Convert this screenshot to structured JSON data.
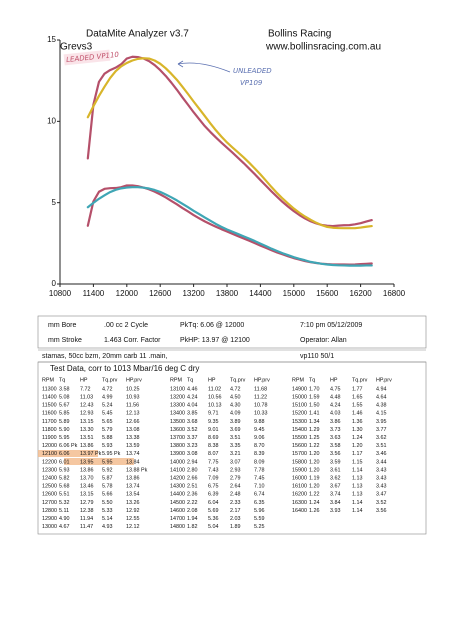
{
  "chart_data": {
    "type": "line",
    "title": "DataMite Analyzer v3.7",
    "subtitle": "Grevs3",
    "header_right": [
      "Bollins Racing",
      "www.bollinsracing.com.au"
    ],
    "annotations": [
      "LEADED VP110",
      "UNLEADED",
      "VP109"
    ],
    "xlim": [
      10800,
      16800
    ],
    "xticks": [
      10800,
      11400,
      12000,
      12600,
      13200,
      13800,
      14400,
      15000,
      15600,
      16200,
      16800
    ],
    "ylim": [
      0,
      15
    ],
    "yticks": [
      0,
      5,
      10,
      15
    ],
    "grid": false,
    "x": [
      11300,
      11400,
      11500,
      11600,
      11700,
      11800,
      11900,
      12000,
      12100,
      12200,
      12300,
      12400,
      12500,
      12600,
      12700,
      12800,
      12900,
      13000,
      13100,
      13200,
      13300,
      13400,
      13500,
      13600,
      13700,
      13800,
      13900,
      14000,
      14100,
      14200,
      14300,
      14400,
      14500,
      14600,
      14700,
      14800,
      14900,
      15000,
      15100,
      15200,
      15300,
      15400,
      15500,
      15600,
      15700,
      15800,
      15900,
      16000,
      16100,
      16200,
      16300,
      16400
    ],
    "series": [
      {
        "color": "#b5506a",
        "values": [
          7.72,
          11.03,
          12.43,
          12.93,
          13.15,
          13.3,
          13.51,
          13.86,
          13.97,
          13.95,
          13.86,
          13.7,
          13.46,
          13.15,
          12.79,
          12.38,
          11.94,
          11.47,
          11.02,
          10.56,
          10.13,
          9.71,
          9.35,
          9.01,
          8.69,
          8.38,
          8.07,
          7.75,
          7.43,
          7.09,
          6.75,
          6.39,
          6.04,
          5.69,
          5.36,
          5.04,
          4.75,
          4.48,
          4.24,
          4.03,
          3.86,
          3.73,
          3.63,
          3.58,
          3.56,
          3.59,
          3.61,
          3.62,
          3.67,
          3.74,
          3.84,
          3.93
        ]
      },
      {
        "color": "#d8b52a",
        "values": [
          10.25,
          10.93,
          11.56,
          12.13,
          12.66,
          13.08,
          13.38,
          13.59,
          13.74,
          13.84,
          13.88,
          13.86,
          13.74,
          13.54,
          13.26,
          12.92,
          12.55,
          12.12,
          11.68,
          11.22,
          10.78,
          10.33,
          9.88,
          9.45,
          9.06,
          8.7,
          8.39,
          8.09,
          7.78,
          7.45,
          7.1,
          6.74,
          6.35,
          5.96,
          5.59,
          5.25,
          4.94,
          4.64,
          4.38,
          4.15,
          3.95,
          3.77,
          3.62,
          3.51,
          3.46,
          3.44,
          3.43,
          3.43,
          3.43,
          3.47,
          3.52,
          3.56
        ]
      },
      {
        "color": "#b5506a",
        "values": [
          3.58,
          5.08,
          5.67,
          5.85,
          5.89,
          5.9,
          5.95,
          6.06,
          6.06,
          6.01,
          5.93,
          5.82,
          5.68,
          5.51,
          5.32,
          5.11,
          4.9,
          4.67,
          4.46,
          4.24,
          4.04,
          3.85,
          3.68,
          3.52,
          3.37,
          3.23,
          3.08,
          2.94,
          2.8,
          2.66,
          2.51,
          2.36,
          2.22,
          2.08,
          1.94,
          1.82,
          1.7,
          1.59,
          1.5,
          1.41,
          1.34,
          1.29,
          1.25,
          1.22,
          1.2,
          1.2,
          1.2,
          1.19,
          1.2,
          1.22,
          1.24,
          1.26
        ]
      },
      {
        "color": "#3fa6b5",
        "values": [
          4.72,
          4.99,
          5.24,
          5.45,
          5.65,
          5.79,
          5.88,
          5.93,
          5.95,
          5.95,
          5.92,
          5.87,
          5.78,
          5.66,
          5.5,
          5.33,
          5.14,
          4.93,
          4.72,
          4.5,
          4.3,
          4.09,
          3.89,
          3.69,
          3.51,
          3.35,
          3.21,
          3.07,
          2.93,
          2.79,
          2.64,
          2.48,
          2.33,
          2.17,
          2.03,
          1.89,
          1.77,
          1.65,
          1.55,
          1.46,
          1.36,
          1.3,
          1.24,
          1.2,
          1.17,
          1.15,
          1.14,
          1.13,
          1.13,
          1.13,
          1.14,
          1.14
        ]
      }
    ]
  },
  "info": {
    "rows": [
      [
        "mm Bore",
        ".00 cc 2 Cycle",
        "PkTq: 6.06 @ 12000",
        "7:10 pm 05/12/2009"
      ],
      [
        "mm Stroke",
        "1.463 Corr. Factor",
        "PkHP: 13.97 @ 12100",
        "Operator: Allan"
      ]
    ],
    "notes": [
      "stamas, 50cc bzm, 20mm carb 11 .main,",
      "vp110 50/1"
    ]
  },
  "table": {
    "title": "Test Data, corr to 1013 Mbar/16 deg C dry",
    "groups": [
      {
        "header": [
          "RPM",
          "Tq",
          "HP",
          "Tq.prv",
          "HP.prv"
        ],
        "rows": [
          [
            "11300",
            "3.58",
            "7.72",
            "4.72",
            "10.25"
          ],
          [
            "11400",
            "5.08",
            "11.03",
            "4.99",
            "10.93"
          ],
          [
            "11500",
            "5.67",
            "12.43",
            "5.24",
            "11.56"
          ],
          [
            "11600",
            "5.85",
            "12.93",
            "5.45",
            "12.13"
          ],
          [
            "11700",
            "5.89",
            "13.15",
            "5.65",
            "12.66"
          ],
          [
            "11800",
            "5.90",
            "13.30",
            "5.79",
            "13.08"
          ],
          [
            "11900",
            "5.95",
            "13.51",
            "5.88",
            "13.38"
          ],
          [
            "12000",
            "6.06 Pk",
            "13.86",
            "5.93",
            "13.59"
          ],
          [
            "12100",
            "6.06",
            "13.97 Pk",
            "5.95 Pk",
            "13.74"
          ],
          [
            "12200",
            "6.01",
            "13.95",
            "5.95",
            "13.84"
          ],
          [
            "12300",
            "5.93",
            "13.86",
            "5.92",
            "13.88 Pk"
          ],
          [
            "12400",
            "5.82",
            "13.70",
            "5.87",
            "13.86"
          ],
          [
            "12500",
            "5.68",
            "13.46",
            "5.78",
            "13.74"
          ],
          [
            "12600",
            "5.51",
            "13.15",
            "5.66",
            "13.54"
          ],
          [
            "12700",
            "5.32",
            "12.79",
            "5.50",
            "13.26"
          ],
          [
            "12800",
            "5.11",
            "12.38",
            "5.33",
            "12.92"
          ],
          [
            "12900",
            "4.90",
            "11.94",
            "5.14",
            "12.55"
          ],
          [
            "13000",
            "4.67",
            "11.47",
            "4.93",
            "12.12"
          ]
        ]
      },
      {
        "header": [
          "RPM",
          "Tq",
          "HP",
          "Tq.prv",
          "HP.prv"
        ],
        "rows": [
          [
            "13100",
            "4.46",
            "11.02",
            "4.72",
            "11.68"
          ],
          [
            "13200",
            "4.24",
            "10.56",
            "4.50",
            "11.22"
          ],
          [
            "13300",
            "4.04",
            "10.13",
            "4.30",
            "10.78"
          ],
          [
            "13400",
            "3.85",
            "9.71",
            "4.09",
            "10.33"
          ],
          [
            "13500",
            "3.68",
            "9.35",
            "3.89",
            "9.88"
          ],
          [
            "13600",
            "3.52",
            "9.01",
            "3.69",
            "9.45"
          ],
          [
            "13700",
            "3.37",
            "8.69",
            "3.51",
            "9.06"
          ],
          [
            "13800",
            "3.23",
            "8.38",
            "3.35",
            "8.70"
          ],
          [
            "13900",
            "3.08",
            "8.07",
            "3.21",
            "8.39"
          ],
          [
            "14000",
            "2.94",
            "7.75",
            "3.07",
            "8.09"
          ],
          [
            "14100",
            "2.80",
            "7.43",
            "2.93",
            "7.78"
          ],
          [
            "14200",
            "2.66",
            "7.09",
            "2.79",
            "7.45"
          ],
          [
            "14300",
            "2.51",
            "6.75",
            "2.64",
            "7.10"
          ],
          [
            "14400",
            "2.36",
            "6.39",
            "2.48",
            "6.74"
          ],
          [
            "14500",
            "2.22",
            "6.04",
            "2.33",
            "6.35"
          ],
          [
            "14600",
            "2.08",
            "5.69",
            "2.17",
            "5.96"
          ],
          [
            "14700",
            "1.94",
            "5.36",
            "2.03",
            "5.59"
          ],
          [
            "14800",
            "1.82",
            "5.04",
            "1.89",
            "5.25"
          ]
        ]
      },
      {
        "header": [
          "RPM",
          "Tq",
          "HP",
          "Tq.prv",
          "HP.prv"
        ],
        "rows": [
          [
            "14900",
            "1.70",
            "4.75",
            "1.77",
            "4.94"
          ],
          [
            "15000",
            "1.59",
            "4.48",
            "1.65",
            "4.64"
          ],
          [
            "15100",
            "1.50",
            "4.24",
            "1.55",
            "4.38"
          ],
          [
            "15200",
            "1.41",
            "4.03",
            "1.46",
            "4.15"
          ],
          [
            "15300",
            "1.34",
            "3.86",
            "1.36",
            "3.95"
          ],
          [
            "15400",
            "1.29",
            "3.73",
            "1.30",
            "3.77"
          ],
          [
            "15500",
            "1.25",
            "3.63",
            "1.24",
            "3.62"
          ],
          [
            "15600",
            "1.22",
            "3.58",
            "1.20",
            "3.51"
          ],
          [
            "15700",
            "1.20",
            "3.56",
            "1.17",
            "3.46"
          ],
          [
            "15800",
            "1.20",
            "3.59",
            "1.15",
            "3.44"
          ],
          [
            "15900",
            "1.20",
            "3.61",
            "1.14",
            "3.43"
          ],
          [
            "16000",
            "1.19",
            "3.62",
            "1.13",
            "3.43"
          ],
          [
            "16100",
            "1.20",
            "3.67",
            "1.13",
            "3.43"
          ],
          [
            "16200",
            "1.22",
            "3.74",
            "1.13",
            "3.47"
          ],
          [
            "16300",
            "1.24",
            "3.84",
            "1.14",
            "3.52"
          ],
          [
            "16400",
            "1.26",
            "3.93",
            "1.14",
            "3.56"
          ]
        ]
      }
    ]
  }
}
